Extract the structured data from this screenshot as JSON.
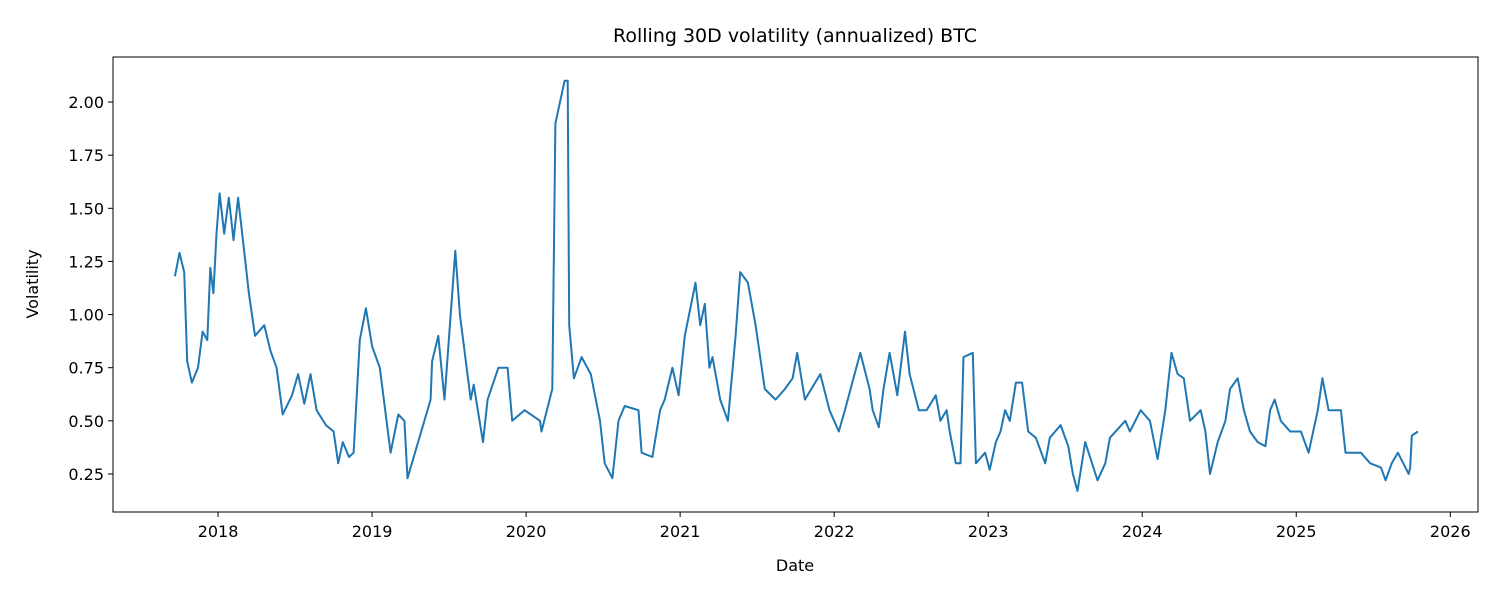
{
  "chart_data": {
    "type": "line",
    "title": "Rolling 30D volatility (annualized) BTC",
    "xlabel": "Date",
    "ylabel": "Volatility",
    "color": "#1f77b4",
    "x": [
      2017.72,
      2017.75,
      2017.78,
      2017.8,
      2017.83,
      2017.87,
      2017.9,
      2017.93,
      2017.95,
      2017.97,
      2017.99,
      2018.01,
      2018.04,
      2018.07,
      2018.1,
      2018.13,
      2018.16,
      2018.2,
      2018.24,
      2018.3,
      2018.34,
      2018.38,
      2018.42,
      2018.48,
      2018.52,
      2018.56,
      2018.6,
      2018.64,
      2018.7,
      2018.75,
      2018.78,
      2018.81,
      2018.85,
      2018.88,
      2018.92,
      2018.96,
      2019.0,
      2019.05,
      2019.12,
      2019.17,
      2019.21,
      2019.23,
      2019.38,
      2019.39,
      2019.43,
      2019.47,
      2019.54,
      2019.57,
      2019.64,
      2019.66,
      2019.72,
      2019.75,
      2019.82,
      2019.88,
      2019.91,
      2019.99,
      2020.09,
      2020.1,
      2020.17,
      2020.19,
      2020.25,
      2020.27,
      2020.28,
      2020.31,
      2020.36,
      2020.42,
      2020.48,
      2020.51,
      2020.56,
      2020.6,
      2020.64,
      2020.73,
      2020.75,
      2020.82,
      2020.87,
      2020.9,
      2020.95,
      2020.99,
      2021.03,
      2021.1,
      2021.13,
      2021.16,
      2021.19,
      2021.21,
      2021.26,
      2021.31,
      2021.36,
      2021.39,
      2021.44,
      2021.49,
      2021.55,
      2021.62,
      2021.68,
      2021.73,
      2021.76,
      2021.81,
      2021.91,
      2021.97,
      2022.03,
      2022.07,
      2022.17,
      2022.23,
      2022.25,
      2022.29,
      2022.32,
      2022.36,
      2022.41,
      2022.46,
      2022.49,
      2022.55,
      2022.6,
      2022.66,
      2022.69,
      2022.73,
      2022.75,
      2022.79,
      2022.82,
      2022.84,
      2022.9,
      2022.92,
      2022.98,
      2023.01,
      2023.05,
      2023.08,
      2023.11,
      2023.14,
      2023.18,
      2023.22,
      2023.26,
      2023.31,
      2023.37,
      2023.4,
      2023.47,
      2023.52,
      2023.55,
      2023.58,
      2023.63,
      2023.71,
      2023.76,
      2023.79,
      2023.89,
      2023.92,
      2023.99,
      2024.05,
      2024.1,
      2024.15,
      2024.19,
      2024.23,
      2024.27,
      2024.31,
      2024.38,
      2024.41,
      2024.44,
      2024.49,
      2024.54,
      2024.57,
      2024.62,
      2024.66,
      2024.7,
      2024.75,
      2024.8,
      2024.83,
      2024.86,
      2024.9,
      2024.96,
      2025.03,
      2025.08,
      2025.14,
      2025.17,
      2025.21,
      2025.29,
      2025.32,
      2025.42,
      2025.48,
      2025.55,
      2025.58,
      2025.62,
      2025.66,
      2025.73,
      2025.74,
      2025.75,
      2025.79
    ],
    "values": [
      1.18,
      1.29,
      1.2,
      0.78,
      0.68,
      0.75,
      0.92,
      0.88,
      1.22,
      1.1,
      1.38,
      1.57,
      1.38,
      1.55,
      1.35,
      1.55,
      1.36,
      1.1,
      0.9,
      0.95,
      0.83,
      0.75,
      0.53,
      0.62,
      0.72,
      0.58,
      0.72,
      0.55,
      0.48,
      0.45,
      0.3,
      0.4,
      0.33,
      0.35,
      0.88,
      1.03,
      0.85,
      0.75,
      0.35,
      0.53,
      0.5,
      0.23,
      0.6,
      0.78,
      0.9,
      0.6,
      1.3,
      1.0,
      0.6,
      0.67,
      0.4,
      0.6,
      0.75,
      0.75,
      0.5,
      0.55,
      0.5,
      0.45,
      0.65,
      1.9,
      2.1,
      2.1,
      0.95,
      0.7,
      0.8,
      0.72,
      0.5,
      0.3,
      0.23,
      0.5,
      0.57,
      0.55,
      0.35,
      0.33,
      0.55,
      0.6,
      0.75,
      0.62,
      0.9,
      1.15,
      0.95,
      1.05,
      0.75,
      0.8,
      0.6,
      0.5,
      0.9,
      1.2,
      1.15,
      0.95,
      0.65,
      0.6,
      0.65,
      0.7,
      0.82,
      0.6,
      0.72,
      0.55,
      0.45,
      0.55,
      0.82,
      0.65,
      0.55,
      0.47,
      0.65,
      0.82,
      0.62,
      0.92,
      0.72,
      0.55,
      0.55,
      0.62,
      0.5,
      0.55,
      0.45,
      0.3,
      0.3,
      0.8,
      0.82,
      0.3,
      0.35,
      0.27,
      0.4,
      0.45,
      0.55,
      0.5,
      0.68,
      0.68,
      0.45,
      0.42,
      0.3,
      0.42,
      0.48,
      0.38,
      0.25,
      0.17,
      0.4,
      0.22,
      0.3,
      0.42,
      0.5,
      0.45,
      0.55,
      0.5,
      0.32,
      0.55,
      0.82,
      0.72,
      0.7,
      0.5,
      0.55,
      0.45,
      0.25,
      0.4,
      0.5,
      0.65,
      0.7,
      0.55,
      0.45,
      0.4,
      0.38,
      0.55,
      0.6,
      0.5,
      0.45,
      0.45,
      0.35,
      0.55,
      0.7,
      0.55,
      0.55,
      0.35,
      0.35,
      0.3,
      0.28,
      0.22,
      0.3,
      0.35,
      0.25,
      0.28,
      0.43,
      0.45
    ],
    "xlim": [
      2017.318,
      2026.18
    ],
    "xticks": [
      2018,
      2019,
      2020,
      2021,
      2022,
      2023,
      2024,
      2025,
      2026
    ],
    "ylim": [
      0.071,
      2.212
    ],
    "yticks": [
      {
        "value": 0.25,
        "label": "0.25"
      },
      {
        "value": 0.5,
        "label": "0.50"
      },
      {
        "value": 0.75,
        "label": "0.75"
      },
      {
        "value": 1,
        "label": "1.00"
      },
      {
        "value": 1.25,
        "label": "1.25"
      },
      {
        "value": 1.5,
        "label": "1.50"
      },
      {
        "value": 1.75,
        "label": "1.75"
      },
      {
        "value": 2,
        "label": "2.00"
      }
    ]
  }
}
